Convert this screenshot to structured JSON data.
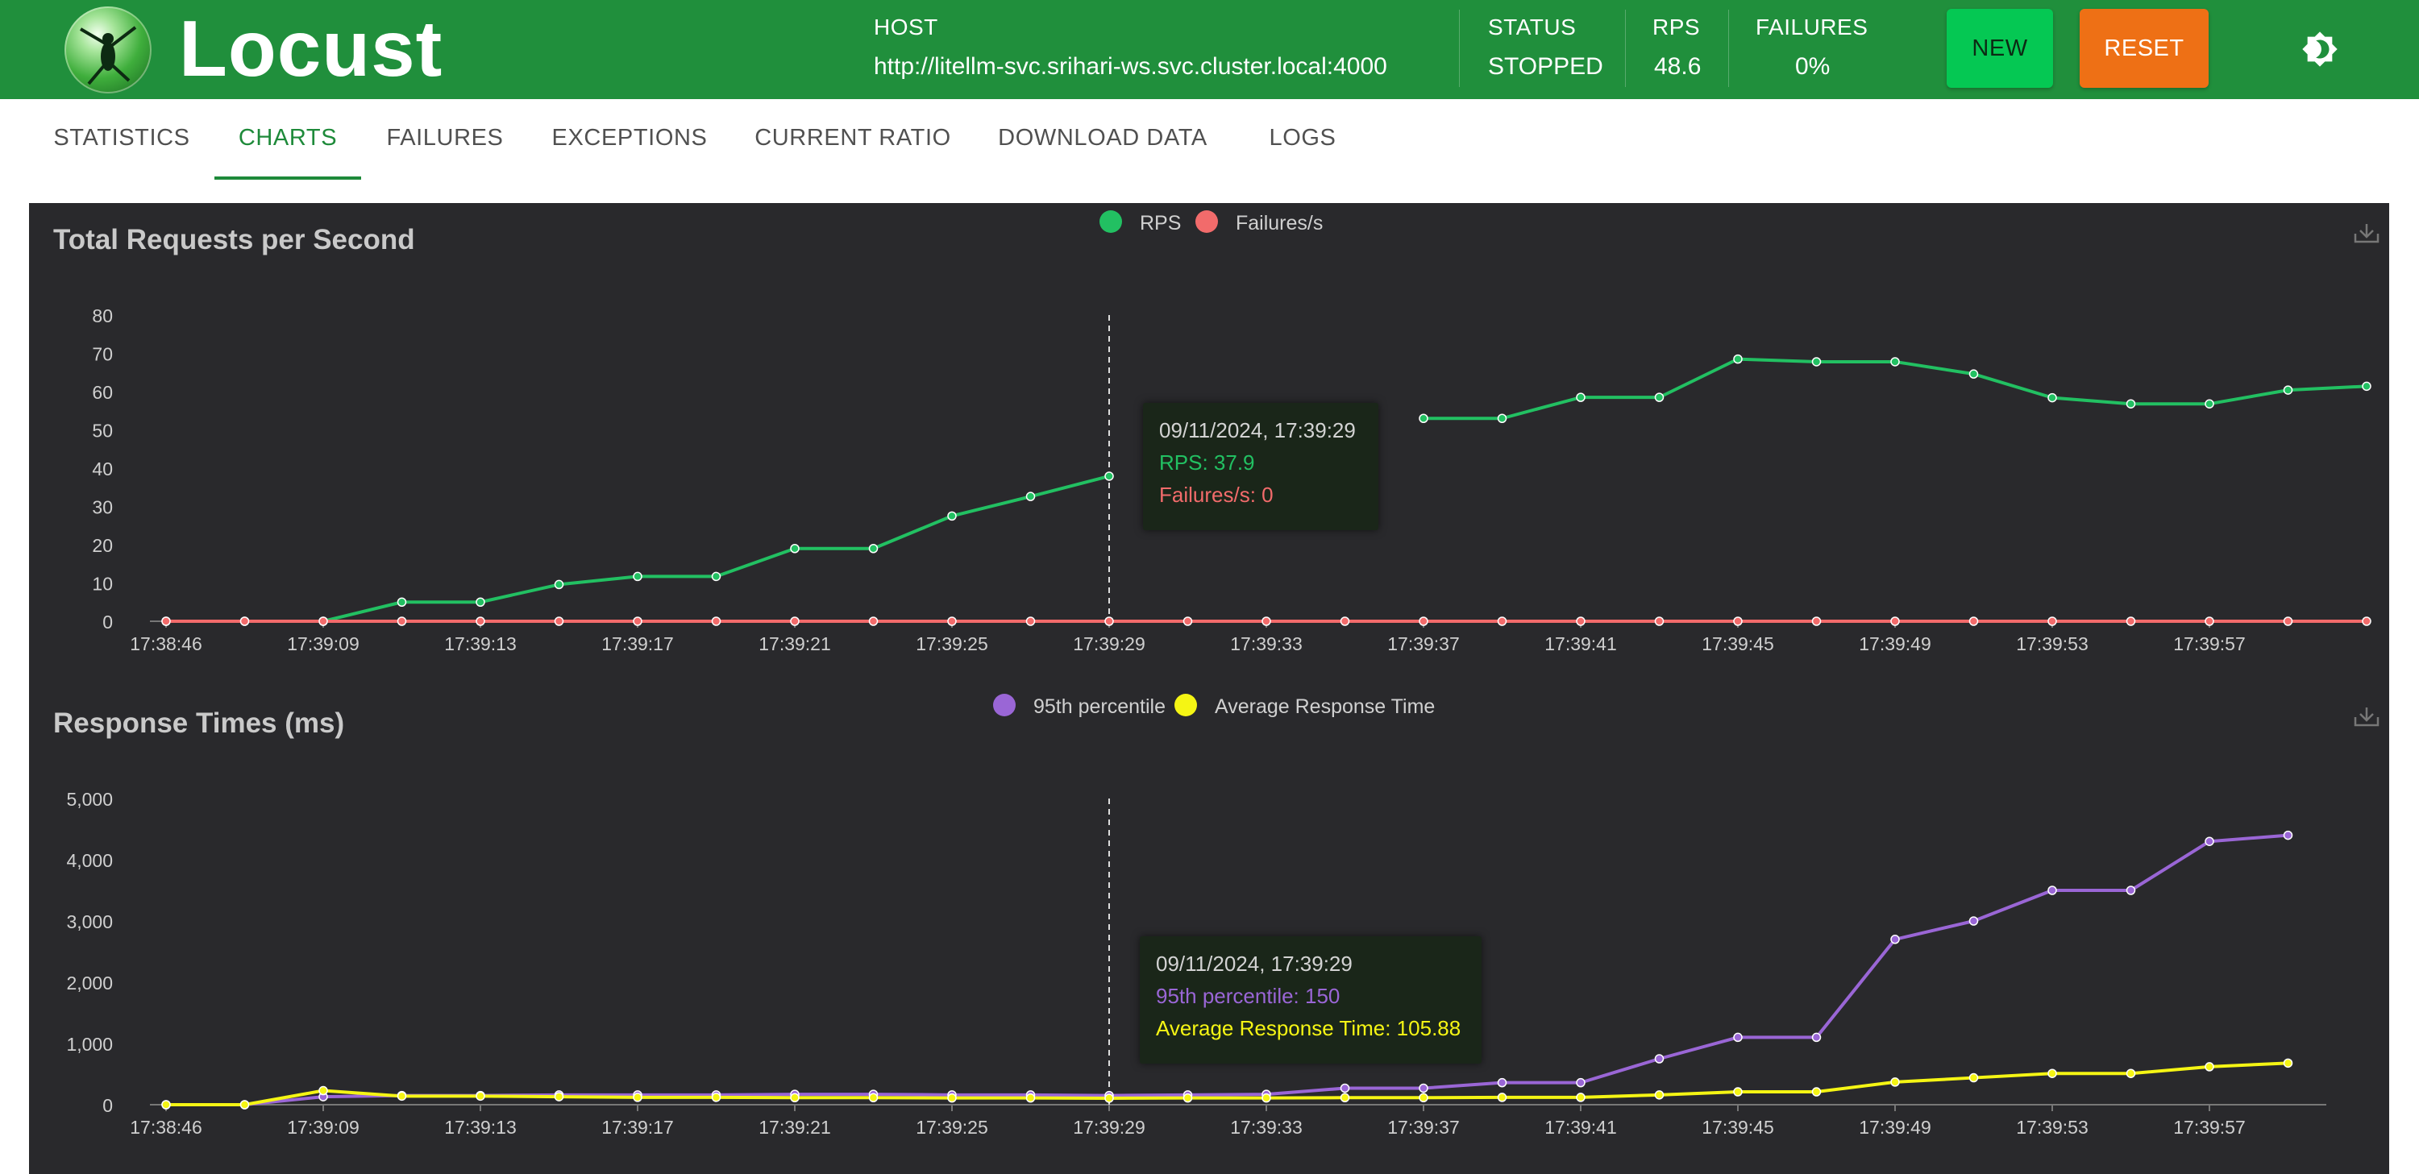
{
  "header": {
    "app_name": "Locust",
    "host_label": "HOST",
    "host_value": "http://litellm-svc.srihari-ws.svc.cluster.local:4000",
    "status_label": "STATUS",
    "status_value": "STOPPED",
    "rps_label": "RPS",
    "rps_value": "48.6",
    "failures_label": "FAILURES",
    "failures_value": "0%",
    "new_button": "NEW",
    "reset_button": "RESET",
    "theme_icon": "brightness-icon"
  },
  "tabs": [
    {
      "label": "STATISTICS",
      "active": false
    },
    {
      "label": "CHARTS",
      "active": true
    },
    {
      "label": "FAILURES",
      "active": false
    },
    {
      "label": "EXCEPTIONS",
      "active": false
    },
    {
      "label": "CURRENT RATIO",
      "active": false
    },
    {
      "label": "DOWNLOAD DATA",
      "active": false
    },
    {
      "label": "LOGS",
      "active": false
    }
  ],
  "chart_data": [
    {
      "type": "line",
      "title": "Total Requests per Second",
      "legend_position": "top-center",
      "ylim": [
        0,
        80
      ],
      "yticks": [
        "0",
        "10",
        "20",
        "30",
        "40",
        "50",
        "60",
        "70",
        "80"
      ],
      "xtick_labels": [
        "17:38:46",
        "17:39:09",
        "17:39:13",
        "17:39:17",
        "17:39:21",
        "17:39:25",
        "17:39:29",
        "17:39:33",
        "17:39:37",
        "17:39:41",
        "17:39:45",
        "17:39:49",
        "17:39:53",
        "17:39:57"
      ],
      "series": [
        {
          "name": "RPS",
          "color": "#22c062",
          "values": [
            0,
            0,
            0,
            5,
            5,
            9.6,
            11.7,
            11.7,
            19,
            19,
            27.5,
            32.6,
            37.9,
            null,
            null,
            null,
            53,
            53,
            58.5,
            58.5,
            68.5,
            67.8,
            67.8,
            64.6,
            58.4,
            56.8,
            56.8,
            60.4,
            61.4
          ]
        },
        {
          "name": "Failures/s",
          "color": "#f26b6b",
          "values": [
            0,
            0,
            0,
            0,
            0,
            0,
            0,
            0,
            0,
            0,
            0,
            0,
            0,
            0,
            0,
            0,
            0,
            0,
            0,
            0,
            0,
            0,
            0,
            0,
            0,
            0,
            0,
            0,
            0
          ]
        }
      ],
      "tooltip": {
        "date": "09/11/2024, 17:39:29",
        "line1": "RPS: 37.9",
        "line2": "Failures/s: 0"
      }
    },
    {
      "type": "line",
      "title": "Response Times (ms)",
      "legend_position": "top-center",
      "ylim": [
        0,
        5000
      ],
      "yticks": [
        "0",
        "1,000",
        "2,000",
        "3,000",
        "4,000",
        "5,000"
      ],
      "xtick_labels": [
        "17:38:46",
        "17:39:09",
        "17:39:13",
        "17:39:17",
        "17:39:21",
        "17:39:25",
        "17:39:29",
        "17:39:33",
        "17:39:37",
        "17:39:41",
        "17:39:45",
        "17:39:49",
        "17:39:53",
        "17:39:57"
      ],
      "series": [
        {
          "name": "95th percentile",
          "color": "#9a66d6",
          "values": [
            0,
            0,
            130,
            150,
            150,
            160,
            160,
            160,
            170,
            170,
            160,
            160,
            150,
            160,
            170,
            270,
            270,
            360,
            360,
            750,
            1100,
            1100,
            2700,
            3000,
            3500,
            3500,
            4300,
            4400
          ]
        },
        {
          "name": "Average Response Time",
          "color": "#f5f514",
          "values": [
            0,
            0,
            230,
            140,
            140,
            130,
            120,
            120,
            115,
            115,
            110,
            110,
            105.88,
            110,
            110,
            115,
            115,
            120,
            120,
            160,
            210,
            210,
            370,
            440,
            510,
            510,
            620,
            680
          ]
        }
      ],
      "tooltip": {
        "date": "09/11/2024, 17:39:29",
        "line1": "95th percentile: 150",
        "line2": "Average Response Time: 105.88"
      }
    }
  ]
}
